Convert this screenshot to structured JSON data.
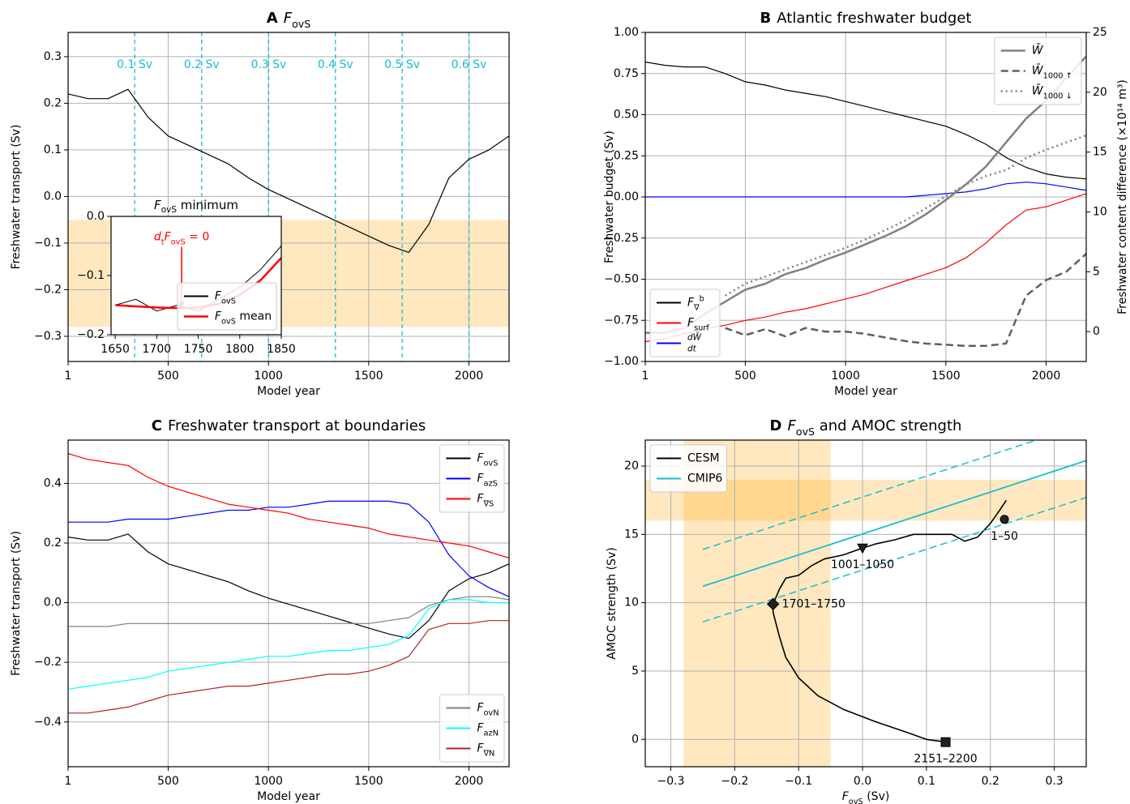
{
  "chart_data": [
    {
      "type": "line",
      "panel": "A",
      "title": [
        "F",
        {
          "sub": "ovS"
        }
      ],
      "xlabel": "Model year",
      "ylabel": "Freshwater transport (Sv)",
      "x": [
        1,
        100,
        200,
        300,
        400,
        500,
        600,
        700,
        800,
        900,
        1000,
        1100,
        1200,
        1300,
        1400,
        1500,
        1600,
        1700,
        1800,
        1900,
        2000,
        2100,
        2200
      ],
      "values": [
        0.22,
        0.21,
        0.21,
        0.23,
        0.17,
        0.13,
        0.11,
        0.09,
        0.07,
        0.04,
        0.015,
        -0.005,
        -0.025,
        -0.045,
        -0.065,
        -0.085,
        -0.105,
        -0.12,
        -0.06,
        0.04,
        0.08,
        0.1,
        0.13
      ],
      "color": "#000000",
      "width": 1.2,
      "xlim": [
        1,
        2200
      ],
      "ylim": [
        -0.354,
        0.352
      ],
      "xticks": [
        1,
        500,
        1000,
        1500,
        2000
      ],
      "yticks": [
        {
          "value": -0.3,
          "label": "−0.3"
        },
        {
          "value": -0.2,
          "label": "−0.2"
        },
        {
          "value": -0.1,
          "label": "−0.1"
        },
        {
          "value": 0,
          "label": "0.0"
        },
        0.1,
        0.2,
        0.3
      ],
      "grid": true,
      "hspan": [
        -0.28,
        -0.05
      ],
      "span_color": "#ffa500",
      "span_opacity": 0.25,
      "vlines": {
        "x": [
          333,
          667,
          1001,
          1334,
          1667,
          2000
        ],
        "labels": [
          "0.1 Sv",
          "0.2 Sv",
          "0.3 Sv",
          "0.4 Sv",
          "0.5 Sv",
          "0.6 Sv"
        ],
        "color": "#17becf"
      }
    },
    {
      "type": "line",
      "title": [
        "F",
        {
          "sub": "ovS"
        },
        " minimum"
      ],
      "x": [
        1650,
        1675,
        1700,
        1725,
        1750,
        1775,
        1800,
        1825,
        1850
      ],
      "series": [
        {
          "name": [
            "F",
            {
              "sub": "ovS"
            }
          ],
          "color": "#000000",
          "width": 1,
          "legend_loc": "lower right",
          "values": [
            -0.15,
            -0.14,
            -0.16,
            -0.15,
            -0.16,
            -0.14,
            -0.12,
            -0.09,
            -0.05
          ]
        },
        {
          "name": [
            "F",
            {
              "sub": "ovS"
            },
            " mean"
          ],
          "color": "#ff0000",
          "width": 2.5,
          "legend_loc": "lower right",
          "values": [
            -0.15,
            -0.152,
            -0.154,
            -0.155,
            -0.154,
            -0.148,
            -0.133,
            -0.108,
            -0.07
          ]
        }
      ],
      "xlim": [
        1645,
        1850
      ],
      "ylim": [
        -0.2,
        0
      ],
      "xticks": [
        1650,
        1700,
        1750,
        1800,
        1850
      ],
      "yticks": [
        {
          "value": -0.2,
          "label": "−0.2"
        },
        {
          "value": -0.1,
          "label": "−0.1"
        },
        {
          "value": 0,
          "label": "0.0"
        }
      ],
      "grid": false,
      "annotation": {
        "text": [
          "d",
          {
            "sub": "t"
          },
          "F",
          {
            "sub": "ovS"
          },
          " = 0"
        ],
        "xy": [
          1730,
          -0.155
        ],
        "xytext": [
          1730,
          -0.035
        ],
        "color": "#ff0000"
      }
    },
    {
      "type": "line",
      "panel": "B",
      "title": "Atlantic freshwater budget",
      "xlabel": "Model year",
      "ylabel": "Freshwater budget (Sv)",
      "y2label": "Freshwater content difference (×10¹⁴ m³)",
      "x": [
        1,
        100,
        200,
        300,
        400,
        500,
        600,
        700,
        800,
        900,
        1000,
        1100,
        1200,
        1300,
        1400,
        1500,
        1600,
        1700,
        1800,
        1900,
        2000,
        2100,
        2200
      ],
      "series": [
        {
          "name": [
            "F",
            {
              "sub": "∇"
            },
            {
              "sup": "b"
            }
          ],
          "color": "#000000",
          "width": 1.2,
          "legend_loc": "lower left",
          "values": [
            0.82,
            0.8,
            0.79,
            0.79,
            0.75,
            0.7,
            0.68,
            0.65,
            0.63,
            0.61,
            0.58,
            0.55,
            0.52,
            0.49,
            0.46,
            0.43,
            0.38,
            0.32,
            0.24,
            0.18,
            0.14,
            0.12,
            0.11
          ]
        },
        {
          "name": [
            "F",
            {
              "sub": "surf"
            }
          ],
          "color": "#ff0000",
          "width": 1.2,
          "legend_loc": "lower left",
          "values": [
            -0.88,
            -0.86,
            -0.83,
            -0.8,
            -0.78,
            -0.75,
            -0.73,
            -0.7,
            -0.68,
            -0.65,
            -0.62,
            -0.59,
            -0.55,
            -0.51,
            -0.47,
            -0.43,
            -0.37,
            -0.28,
            -0.17,
            -0.08,
            -0.06,
            -0.02,
            0.02
          ]
        },
        {
          "name": [
            {
              "num": "dW̄",
              "den": "dt"
            }
          ],
          "color": "#0000ff",
          "width": 1.2,
          "legend_loc": "lower left",
          "values": [
            0,
            0,
            0,
            0,
            0,
            0,
            0,
            0,
            0,
            0,
            0,
            0,
            0,
            0,
            0.01,
            0.02,
            0.03,
            0.05,
            0.08,
            0.09,
            0.08,
            0.06,
            0.04
          ]
        },
        {
          "name": [
            "W̄"
          ],
          "axis": "y2",
          "color": "#808080",
          "width": 2.5,
          "dash": "solid",
          "legend_loc": "upper right",
          "values": [
            -0.1,
            -0.1,
            0.3,
            1.5,
            2.5,
            3.5,
            4.0,
            4.8,
            5.3,
            6.0,
            6.6,
            7.3,
            8.0,
            8.8,
            9.8,
            11.0,
            12.3,
            13.8,
            15.8,
            17.8,
            19.3,
            21.2,
            23.0
          ]
        },
        {
          "name": [
            "W̄",
            {
              "sub": "1000 ↑"
            }
          ],
          "axis": "y2",
          "color": "#606060",
          "width": 2.5,
          "dash": "dashed",
          "legend_loc": "upper right",
          "values": [
            null,
            null,
            null,
            null,
            0.3,
            -0.3,
            0.2,
            -0.4,
            0.3,
            0.0,
            0.0,
            -0.2,
            -0.5,
            -0.8,
            -1.0,
            -1.1,
            -1.2,
            -1.2,
            -1.0,
            3.0,
            4.3,
            5.0,
            6.5
          ]
        },
        {
          "name": [
            "W̄",
            {
              "sub": "1000 ↓"
            }
          ],
          "axis": "y2",
          "color": "#808080",
          "width": 2.5,
          "dash": "dotted",
          "legend_loc": "upper right",
          "values": [
            null,
            null,
            null,
            null,
            3.0,
            4.0,
            4.6,
            5.2,
            5.8,
            6.4,
            7.0,
            7.7,
            8.5,
            9.3,
            10.3,
            11.3,
            12.3,
            13.0,
            13.5,
            14.5,
            15.2,
            15.8,
            16.4
          ]
        }
      ],
      "xlim": [
        1,
        2200
      ],
      "ylim": [
        -1,
        1
      ],
      "y2lim": [
        -2.5,
        25
      ],
      "xticks": [
        1,
        500,
        1000,
        1500,
        2000
      ],
      "yticks": [
        {
          "value": -1,
          "label": "−1.00"
        },
        {
          "value": -0.75,
          "label": "−0.75"
        },
        {
          "value": -0.5,
          "label": "−0.50"
        },
        {
          "value": -0.25,
          "label": "−0.25"
        },
        {
          "value": 0,
          "label": "0.00"
        },
        {
          "value": 0.25,
          "label": "0.25"
        },
        {
          "value": 0.5,
          "label": "0.50"
        },
        {
          "value": 0.75,
          "label": "0.75"
        },
        {
          "value": 1,
          "label": "1.00"
        }
      ],
      "y2ticks": [
        0,
        5,
        10,
        15,
        20,
        25
      ],
      "grid": true
    },
    {
      "type": "line",
      "panel": "C",
      "title": "Freshwater transport at boundaries",
      "xlabel": "Model year",
      "ylabel": "Freshwater transport (Sv)",
      "x": [
        1,
        100,
        200,
        300,
        400,
        500,
        600,
        700,
        800,
        900,
        1000,
        1100,
        1200,
        1300,
        1400,
        1500,
        1600,
        1700,
        1800,
        1900,
        2000,
        2100,
        2200
      ],
      "series": [
        {
          "name": [
            "F",
            {
              "sub": "ovS"
            }
          ],
          "color": "#000000",
          "width": 1.2,
          "legend_loc": "upper right",
          "values": [
            0.22,
            0.21,
            0.21,
            0.23,
            0.17,
            0.13,
            0.11,
            0.09,
            0.07,
            0.04,
            0.015,
            -0.005,
            -0.025,
            -0.045,
            -0.065,
            -0.085,
            -0.105,
            -0.12,
            -0.06,
            0.04,
            0.08,
            0.1,
            0.13
          ]
        },
        {
          "name": [
            "F",
            {
              "sub": "azS"
            }
          ],
          "color": "#0000ff",
          "width": 1.2,
          "legend_loc": "upper right",
          "values": [
            0.27,
            0.27,
            0.27,
            0.28,
            0.28,
            0.28,
            0.29,
            0.3,
            0.31,
            0.31,
            0.32,
            0.32,
            0.33,
            0.34,
            0.34,
            0.34,
            0.34,
            0.33,
            0.27,
            0.16,
            0.09,
            0.05,
            0.02
          ]
        },
        {
          "name": [
            "F",
            {
              "sub": "∇S"
            }
          ],
          "color": "#ff0000",
          "width": 1.2,
          "legend_loc": "upper right",
          "values": [
            0.5,
            0.48,
            0.47,
            0.46,
            0.42,
            0.39,
            0.37,
            0.35,
            0.33,
            0.32,
            0.31,
            0.3,
            0.28,
            0.27,
            0.26,
            0.25,
            0.23,
            0.22,
            0.21,
            0.2,
            0.19,
            0.17,
            0.15
          ]
        },
        {
          "name": [
            "F",
            {
              "sub": "ovN"
            }
          ],
          "color": "#808080",
          "width": 1.2,
          "legend_loc": "lower right",
          "values": [
            -0.08,
            -0.08,
            -0.08,
            -0.07,
            -0.07,
            -0.07,
            -0.07,
            -0.07,
            -0.07,
            -0.07,
            -0.07,
            -0.07,
            -0.07,
            -0.07,
            -0.07,
            -0.07,
            -0.06,
            -0.05,
            -0.01,
            0.01,
            0.02,
            0.02,
            0.01
          ]
        },
        {
          "name": [
            "F",
            {
              "sub": "azN"
            }
          ],
          "color": "#00ffff",
          "width": 1.2,
          "legend_loc": "lower right",
          "values": [
            -0.29,
            -0.28,
            -0.27,
            -0.26,
            -0.25,
            -0.23,
            -0.22,
            -0.21,
            -0.2,
            -0.19,
            -0.18,
            -0.18,
            -0.17,
            -0.16,
            -0.16,
            -0.15,
            -0.14,
            -0.11,
            -0.02,
            0.01,
            0.01,
            0.0,
            0.0
          ]
        },
        {
          "name": [
            "F",
            {
              "sub": "∇N"
            }
          ],
          "color": "#b22222",
          "width": 1.2,
          "legend_loc": "lower right",
          "values": [
            -0.37,
            -0.37,
            -0.36,
            -0.35,
            -0.33,
            -0.31,
            -0.3,
            -0.29,
            -0.28,
            -0.28,
            -0.27,
            -0.26,
            -0.25,
            -0.24,
            -0.24,
            -0.23,
            -0.21,
            -0.18,
            -0.09,
            -0.07,
            -0.07,
            -0.06,
            -0.06
          ]
        }
      ],
      "xlim": [
        1,
        2200
      ],
      "ylim": [
        -0.55,
        0.545
      ],
      "xticks": [
        1,
        500,
        1000,
        1500,
        2000
      ],
      "yticks": [
        {
          "value": -0.4,
          "label": "−0.4"
        },
        {
          "value": -0.2,
          "label": "−0.2"
        },
        {
          "value": 0,
          "label": "0.0"
        },
        0.2,
        0.4
      ],
      "grid": true
    },
    {
      "type": "line",
      "panel": "D",
      "title": [
        "F",
        {
          "sub": "ovS"
        },
        " and AMOC strength"
      ],
      "xlabel": [
        "F",
        {
          "sub": "ovS"
        },
        " (Sv)"
      ],
      "ylabel": "AMOC strength (Sv)",
      "series": [
        {
          "name": "CESM",
          "color": "#000000",
          "width": 1.6,
          "legend_loc": "upper left",
          "x": [
            0.225,
            0.215,
            0.2,
            0.18,
            0.16,
            0.14,
            0.11,
            0.08,
            0.05,
            0.02,
            0.0,
            -0.03,
            -0.06,
            -0.08,
            -0.1,
            -0.12,
            -0.13,
            -0.14,
            -0.14,
            -0.13,
            -0.12,
            -0.1,
            -0.07,
            -0.03,
            0.02,
            0.07,
            0.1,
            0.13
          ],
          "values": [
            17.5,
            16.8,
            15.8,
            14.8,
            14.5,
            15.0,
            15.0,
            15.0,
            14.6,
            14.3,
            14.0,
            13.5,
            13.2,
            12.7,
            12.0,
            11.8,
            11.0,
            9.9,
            9.3,
            7.5,
            6.0,
            4.5,
            3.2,
            2.2,
            1.3,
            0.5,
            0.0,
            -0.2
          ]
        },
        {
          "name": "CMIP6",
          "color": "#17becf",
          "width": 1.8,
          "legend_loc": "upper left",
          "bound_dash": "dashed",
          "x": [
            -0.25,
            0.35
          ],
          "values": [
            11.2,
            20.4
          ],
          "upper": [
            13.9,
            23.1
          ],
          "lower": [
            8.6,
            17.7
          ]
        }
      ],
      "markers": [
        {
          "label": "1–50",
          "x": 0.222,
          "y": 16.1,
          "shape": "circle",
          "label_pos": "below"
        },
        {
          "label": "1001–1050",
          "x": 0.0,
          "y": 14.0,
          "shape": "triangle-down",
          "label_pos": "below"
        },
        {
          "label": "1701–1750",
          "x": -0.14,
          "y": 9.9,
          "shape": "diamond",
          "label_pos": "right"
        },
        {
          "label": "2151–2200",
          "x": 0.13,
          "y": -0.2,
          "shape": "square",
          "label_pos": "below"
        }
      ],
      "xlim": [
        -0.34,
        0.35
      ],
      "ylim": [
        -2,
        21.9
      ],
      "xticks": [
        {
          "value": -0.3,
          "label": "−0.3"
        },
        {
          "value": -0.2,
          "label": "−0.2"
        },
        {
          "value": -0.1,
          "label": "−0.1"
        },
        {
          "value": 0,
          "label": "0.0"
        },
        0.1,
        0.2,
        0.3
      ],
      "yticks": [
        0,
        5,
        10,
        15,
        20
      ],
      "grid": true,
      "hspan": [
        16,
        19
      ],
      "vspan": [
        -0.28,
        -0.05
      ],
      "span_color": "#ffa500",
      "span_opacity": 0.25
    }
  ]
}
